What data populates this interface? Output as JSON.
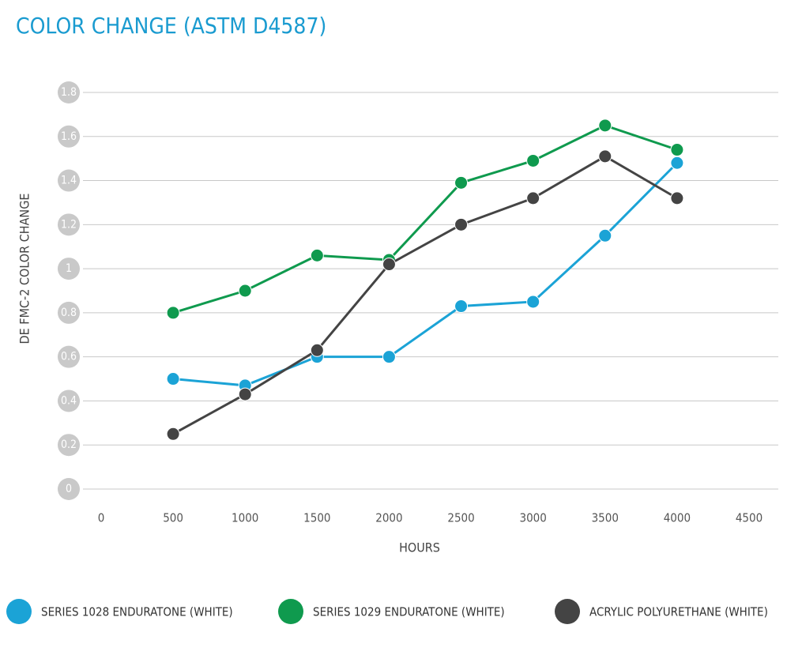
{
  "chart_data": {
    "type": "line",
    "title": "COLOR CHANGE (ASTM D4587)",
    "x_label": "HOURS",
    "y_label": "DE FMC-2 COLOR CHANGE",
    "x": [
      500,
      1000,
      1500,
      2000,
      2500,
      3000,
      3500,
      4000
    ],
    "series": [
      {
        "name": "SERIES 1028 ENDURATONE (WHITE)",
        "color": "#1ba3d6",
        "values": [
          0.5,
          0.47,
          0.6,
          0.6,
          0.83,
          0.85,
          1.15,
          1.48
        ]
      },
      {
        "name": "SERIES 1029 ENDURATONE (WHITE)",
        "color": "#0f9a4e",
        "values": [
          0.8,
          0.9,
          1.06,
          1.04,
          1.39,
          1.49,
          1.65,
          1.54
        ]
      },
      {
        "name": "ACRYLIC POLYURETHANE (WHITE)",
        "color": "#444444",
        "values": [
          0.25,
          0.43,
          0.63,
          1.02,
          1.2,
          1.32,
          1.51,
          1.32
        ]
      }
    ],
    "xlim": [
      0,
      4500
    ],
    "xticks": [
      0,
      500,
      1000,
      1500,
      2000,
      2500,
      3000,
      3500,
      4000,
      4500
    ],
    "ylim": [
      0,
      1.8
    ],
    "yticks": [
      0,
      0.2,
      0.4,
      0.6,
      0.8,
      1,
      1.2,
      1.4,
      1.6,
      1.8
    ],
    "grid": true
  }
}
